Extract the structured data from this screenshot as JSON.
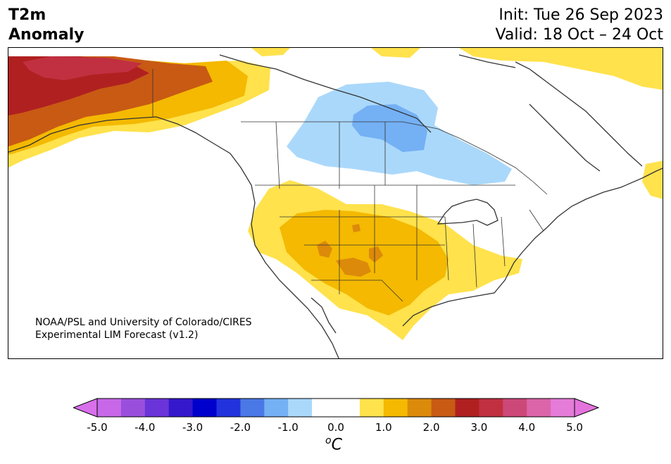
{
  "title": {
    "variable_line1": "T2m",
    "variable_line2": "Anomaly",
    "init": "Init: Tue 26 Sep 2023",
    "valid": "Valid: 18 Oct – 24 Oct"
  },
  "credit": {
    "line1": "NOAA/PSL and University of Colorado/CIRES",
    "line2": "Experimental LIM Forecast (v1.2)"
  },
  "colorbar": {
    "unit_base": "C",
    "unit_sup": "o",
    "ticks": [
      "-5.0",
      "-4.0",
      "-3.0",
      "-2.0",
      "-1.0",
      "0.0",
      "1.0",
      "2.0",
      "3.0",
      "4.0",
      "5.0"
    ],
    "colors": [
      "#c868e8",
      "#9a4fdc",
      "#6a34d8",
      "#3518cc",
      "#0000cc",
      "#2233dd",
      "#4a78e6",
      "#74b0f4",
      "#aad8fb",
      "#ffffff",
      "#ffffff",
      "#ffe24c",
      "#f4b900",
      "#dc8a0a",
      "#c85a14",
      "#b02020",
      "#c03040",
      "#cc4878",
      "#dc64a8",
      "#e47cd8"
    ],
    "extend_low_color": "#d870ec",
    "extend_high_color": "#e474dc"
  },
  "map": {
    "region": "North America",
    "anomaly_colors": {
      "light_blue": "#aad8fb",
      "mid_blue": "#74b0f4",
      "light_yellow": "#ffe24c",
      "yellow": "#f4b900",
      "orange": "#dc8a0a",
      "dark_orange": "#c85a14",
      "red": "#b02020",
      "crimson": "#c03040"
    }
  }
}
